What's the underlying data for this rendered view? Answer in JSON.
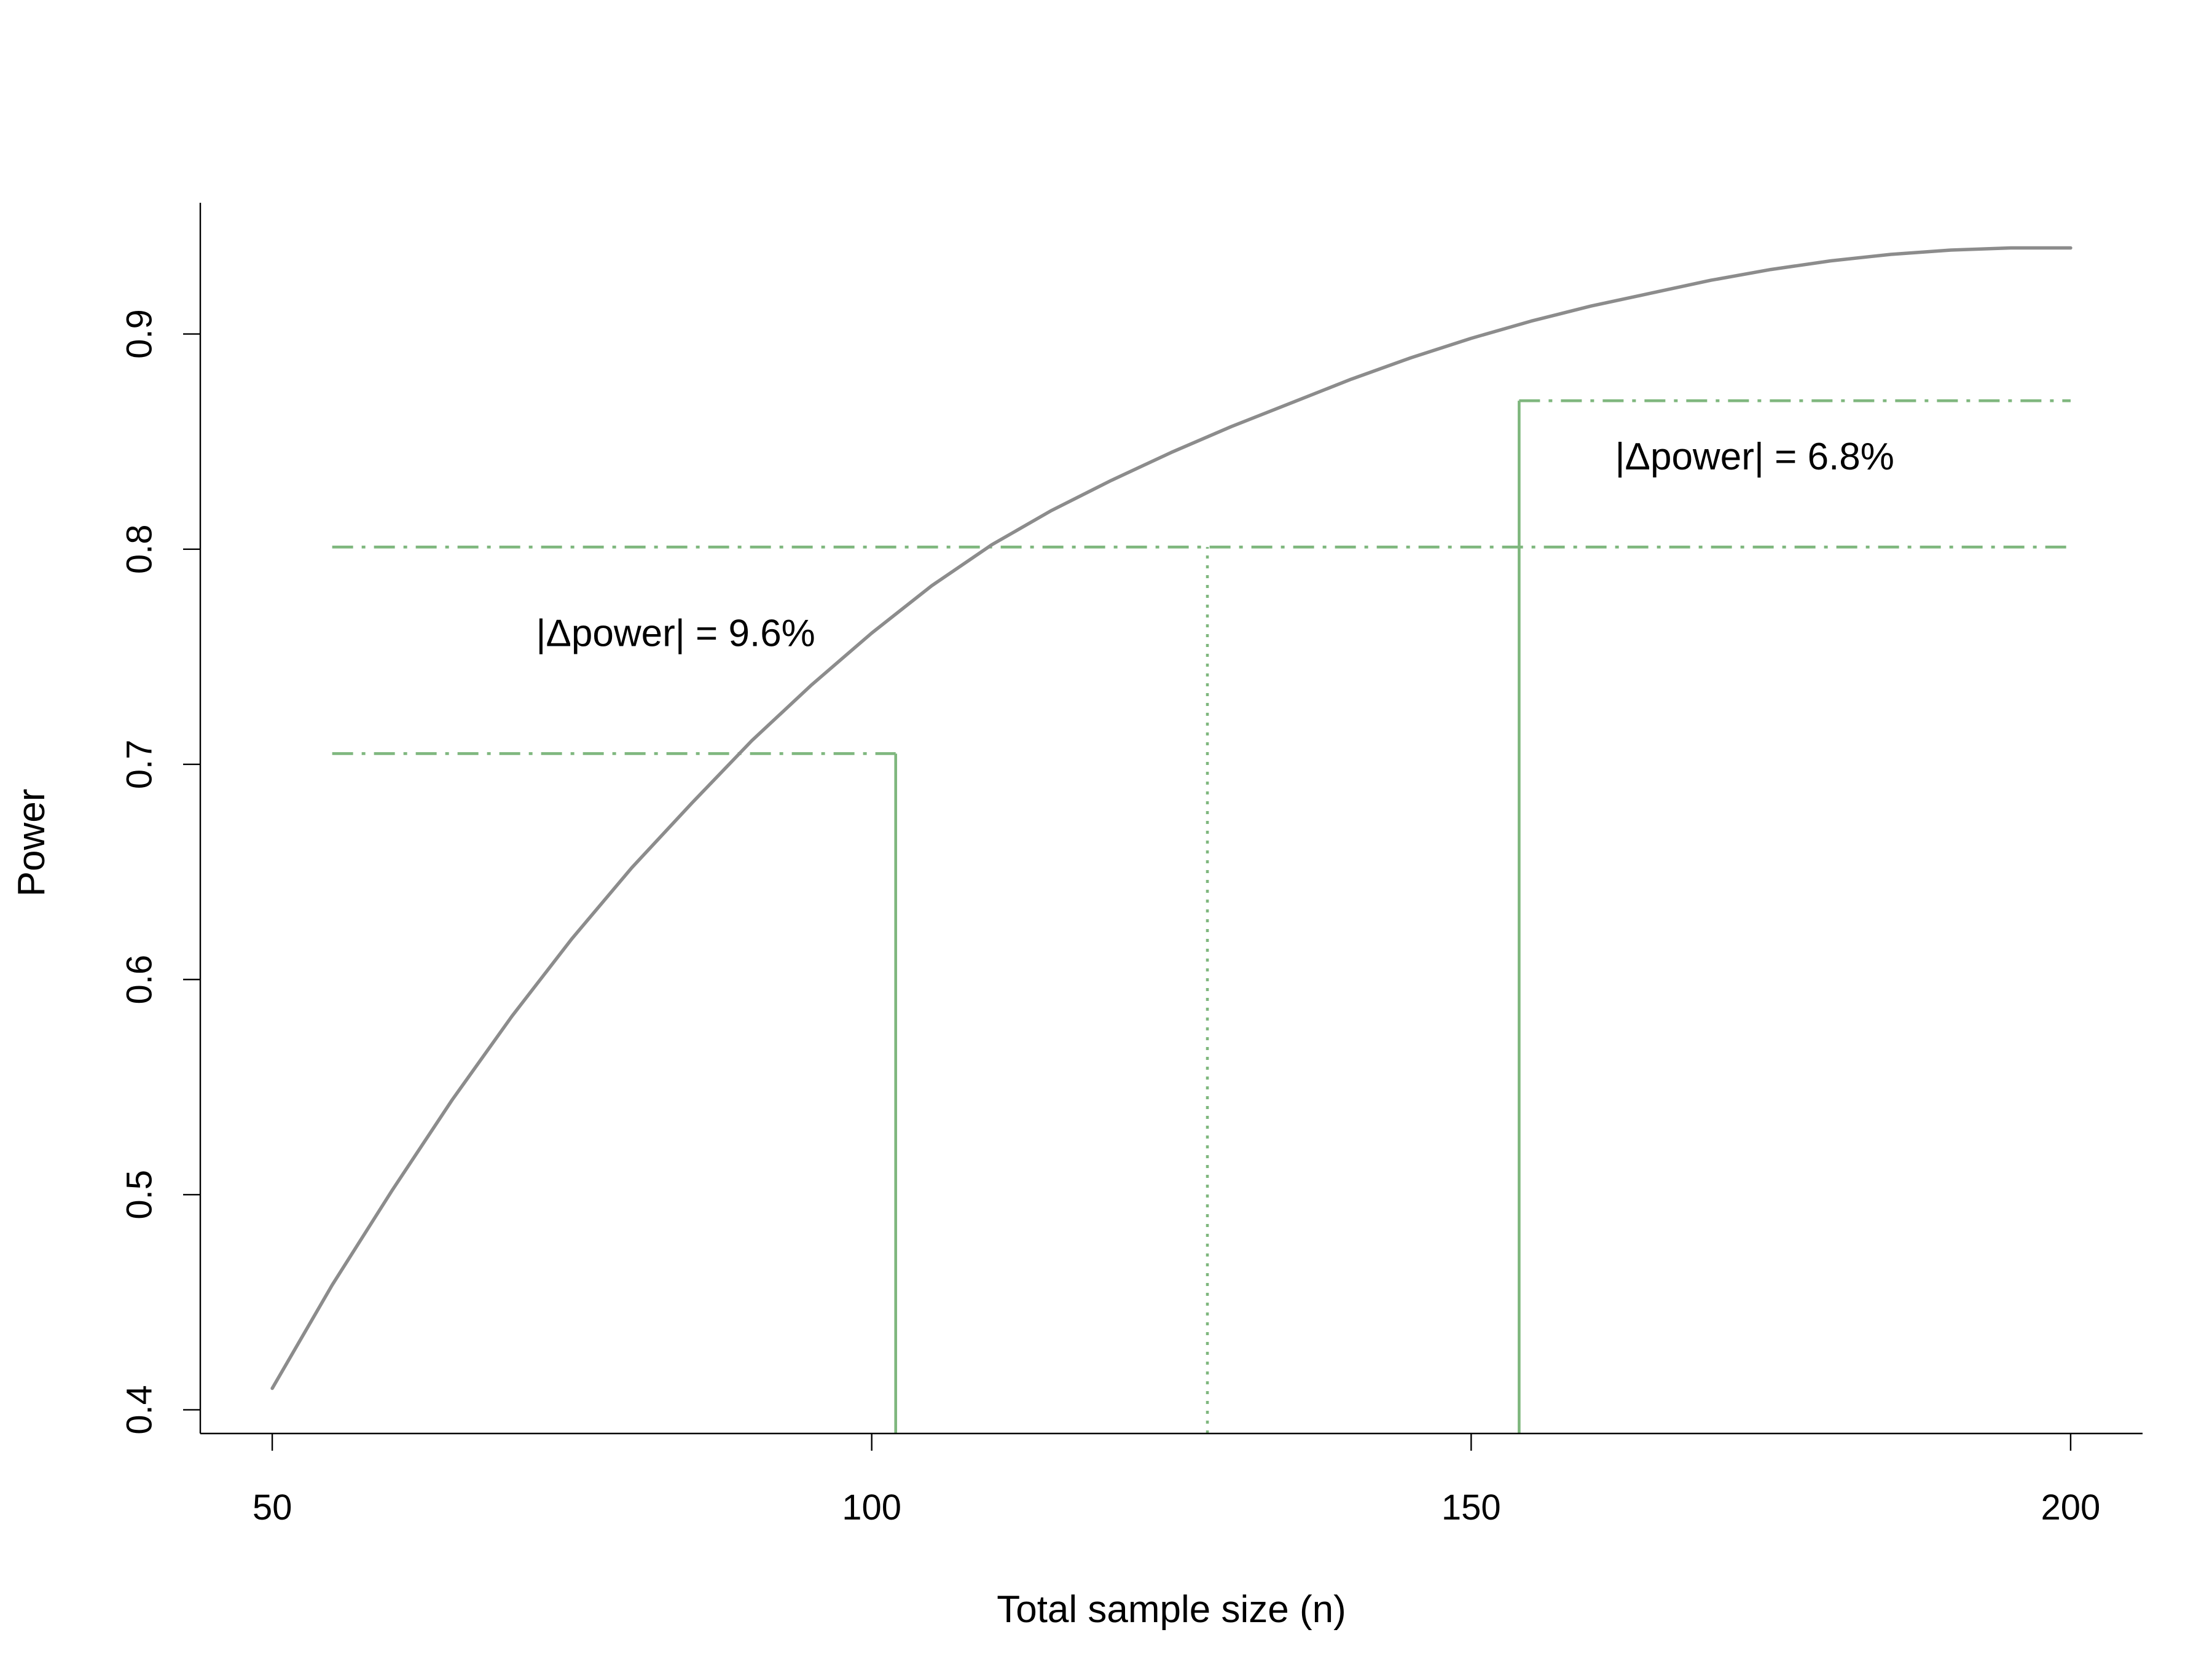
{
  "chart_data": {
    "type": "line",
    "title": "",
    "xlabel": "Total sample size (n)",
    "ylabel": "Power",
    "xlim": [
      44,
      206
    ],
    "ylim": [
      0.389,
      0.961
    ],
    "xticks": [
      50,
      100,
      150,
      200
    ],
    "yticks": [
      0.4,
      0.5,
      0.6,
      0.7,
      0.8,
      0.9
    ],
    "grid": false,
    "series": [
      {
        "color": "#8c8c8c",
        "x": [
          50,
          55,
          60,
          65,
          70,
          75,
          80,
          85,
          90,
          95,
          100,
          105,
          110,
          115,
          120,
          125,
          130,
          135,
          140,
          145,
          150,
          155,
          160,
          165,
          170,
          175,
          180,
          185,
          190,
          195,
          200
        ],
        "y": [
          0.41,
          0.458,
          0.502,
          0.544,
          0.583,
          0.619,
          0.652,
          0.682,
          0.711,
          0.737,
          0.761,
          0.783,
          0.802,
          0.818,
          0.832,
          0.845,
          0.857,
          0.868,
          0.879,
          0.889,
          0.898,
          0.906,
          0.913,
          0.919,
          0.925,
          0.93,
          0.934,
          0.937,
          0.939,
          0.94,
          0.94
        ]
      }
    ],
    "reference_lines": [
      {
        "orientation": "vertical",
        "x": 102,
        "y_to": 0.705,
        "style": "solid",
        "color": "#7fb77e"
      },
      {
        "orientation": "vertical",
        "x": 128,
        "y_to": 0.801,
        "style": "dotted",
        "color": "#7fb77e"
      },
      {
        "orientation": "vertical",
        "x": 154,
        "y_to": 0.869,
        "style": "solid",
        "color": "#7fb77e"
      },
      {
        "orientation": "horizontal",
        "y": 0.705,
        "x_from": 55,
        "x_to": 102,
        "style": "dashdot",
        "color": "#7fb77e"
      },
      {
        "orientation": "horizontal",
        "y": 0.801,
        "x_from": 55,
        "x_to": 200,
        "style": "dashdot",
        "color": "#7fb77e"
      },
      {
        "orientation": "horizontal",
        "y": 0.869,
        "x_from": 154,
        "x_to": 200,
        "style": "dashdot",
        "color": "#7fb77e"
      }
    ],
    "annotations": [
      {
        "text": "|Δpower| = 9.6%",
        "x": 72,
        "y": 0.755
      },
      {
        "text": "|Δpower| = 6.8%",
        "x": 162,
        "y": 0.837
      }
    ]
  }
}
